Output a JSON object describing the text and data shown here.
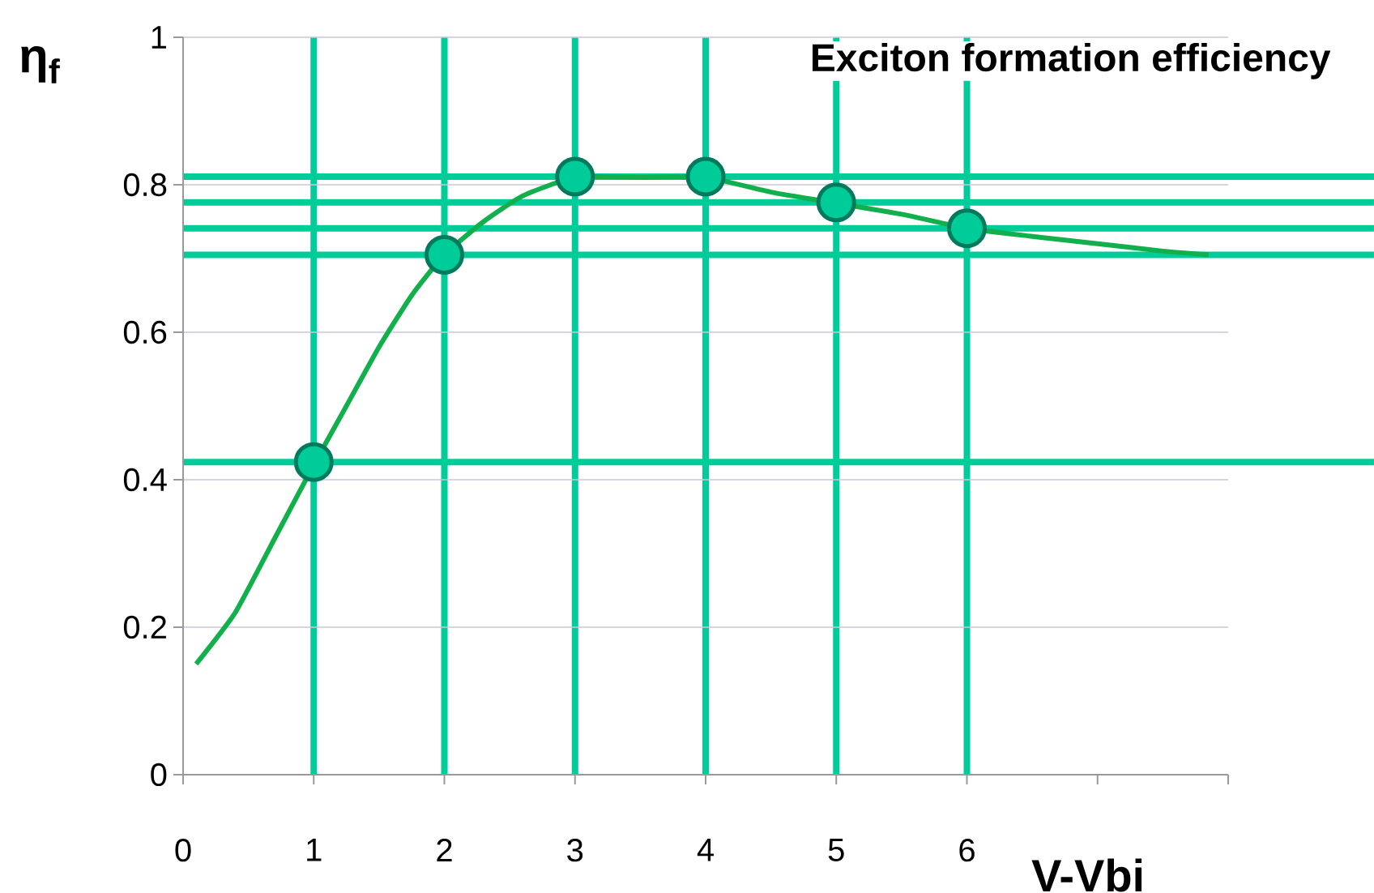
{
  "chart_data": {
    "type": "line",
    "title": "Exciton formation efficiency",
    "xlabel": "V-Vbi",
    "ylabel": "η$_{f}$",
    "xlim": [
      0,
      8
    ],
    "ylim": [
      0,
      1
    ],
    "xticks": [
      0,
      1,
      2,
      3,
      4,
      5,
      6,
      {
        "value": 7,
        "label": null
      },
      {
        "value": 8,
        "label": null
      }
    ],
    "yticks": [
      0,
      0.2,
      0.4,
      0.6,
      0.8,
      1
    ],
    "grid": "y",
    "series": [
      {
        "type": "line",
        "color": "#12b04c",
        "marker": "none",
        "x": [
          0.1,
          0.4,
          0.7,
          1,
          1.25,
          1.5,
          1.75,
          2,
          2.3,
          2.6,
          3,
          3.5,
          4,
          4.5,
          5,
          5.5,
          6,
          6.5,
          7,
          7.5,
          7.85
        ],
        "values": [
          0.15,
          0.22,
          0.32,
          0.42,
          0.5,
          0.58,
          0.65,
          0.705,
          0.75,
          0.785,
          0.81,
          0.81,
          0.81,
          0.79,
          0.775,
          0.76,
          0.741,
          0.73,
          0.72,
          0.71,
          0.705
        ]
      },
      {
        "type": "scatter",
        "color": "#00cc99",
        "marker": "circle",
        "x": [
          1,
          2,
          3,
          4,
          5,
          6
        ],
        "values": [
          0.424,
          0.705,
          0.811,
          0.811,
          0.776,
          0.741
        ]
      }
    ],
    "ref_lines": [
      {
        "axis": "x",
        "value": 1,
        "color": "#00cc99"
      },
      {
        "axis": "x",
        "value": 2,
        "color": "#00cc99"
      },
      {
        "axis": "x",
        "value": 3,
        "color": "#00cc99"
      },
      {
        "axis": "x",
        "value": 4,
        "color": "#00cc99"
      },
      {
        "axis": "x",
        "value": 5,
        "color": "#00cc99"
      },
      {
        "axis": "x",
        "value": 6,
        "color": "#00cc99"
      },
      {
        "axis": "y",
        "value": 0.424,
        "color": "#00cc99"
      },
      {
        "axis": "y",
        "value": 0.705,
        "color": "#00cc99"
      },
      {
        "axis": "y",
        "value": 0.811,
        "color": "#00cc99"
      },
      {
        "axis": "y",
        "value": 0.776,
        "color": "#00cc99"
      },
      {
        "axis": "y",
        "value": 0.741,
        "color": "#00cc99"
      }
    ]
  }
}
